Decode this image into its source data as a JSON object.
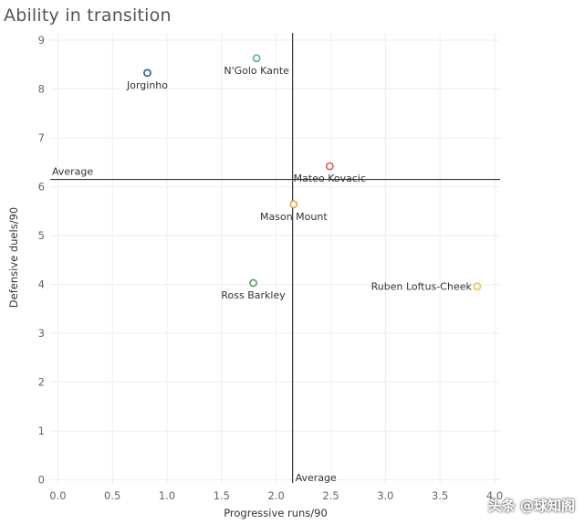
{
  "chart_data": {
    "type": "scatter",
    "title": "Ability in transition",
    "xlabel": "Progressive runs/90",
    "ylabel": "Defensive duels/90",
    "xlim": [
      -0.07,
      4.05
    ],
    "ylim": [
      -0.1,
      9.15
    ],
    "xticks": [
      "0.0",
      "0.5",
      "1.0",
      "1.5",
      "2.0",
      "2.5",
      "3.0",
      "3.5",
      "4.0"
    ],
    "yticks": [
      "0",
      "1",
      "2",
      "3",
      "4",
      "5",
      "6",
      "7",
      "8",
      "9"
    ],
    "grid": true,
    "reference_lines": {
      "x_average": 2.15,
      "y_average": 6.15,
      "x_average_label": "Average",
      "y_average_label": "Average"
    },
    "points": [
      {
        "name": "Jorginho",
        "x": 0.82,
        "y": 8.33,
        "color": "#1f5f8b",
        "label_pos": "below"
      },
      {
        "name": "N'Golo Kante",
        "x": 1.82,
        "y": 8.63,
        "color": "#59b287",
        "label_pos": "below"
      },
      {
        "name": "Mateo Kovacic",
        "x": 2.49,
        "y": 6.42,
        "color": "#e05a5a",
        "label_pos": "below"
      },
      {
        "name": "Mason Mount",
        "x": 2.16,
        "y": 5.64,
        "color": "#e6a23c",
        "label_pos": "below"
      },
      {
        "name": "Ross Barkley",
        "x": 1.79,
        "y": 4.03,
        "color": "#4aa84f",
        "label_pos": "below"
      },
      {
        "name": "Ruben Loftus-Cheek",
        "x": 3.84,
        "y": 3.96,
        "color": "#e9c440",
        "label_pos": "left"
      }
    ]
  },
  "watermark": "头条 @球知阁"
}
